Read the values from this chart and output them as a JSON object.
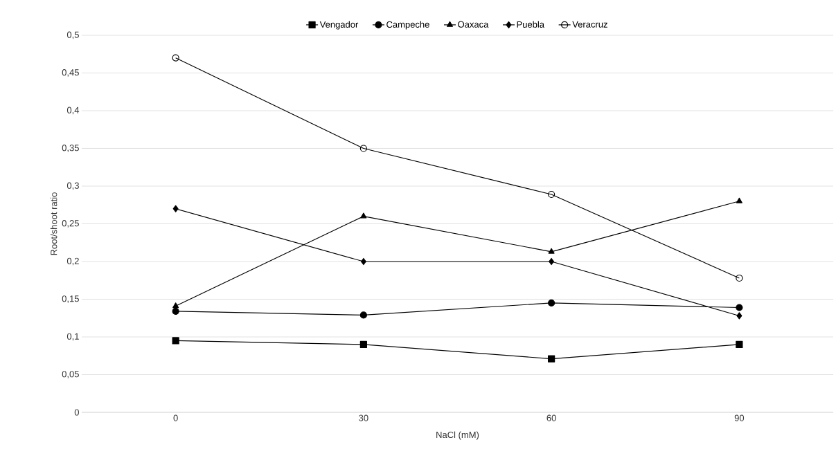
{
  "chart_data": {
    "type": "line",
    "xlabel": "NaCl (mM)",
    "ylabel": "Root/shoot ratio",
    "categories": [
      "0",
      "30",
      "60",
      "90"
    ],
    "series": [
      {
        "name": "Vengador",
        "color": "#000000",
        "marker": "square",
        "values": [
          0.095,
          0.09,
          0.071,
          0.09
        ]
      },
      {
        "name": "Campeche",
        "color": "#000000",
        "marker": "circle",
        "values": [
          0.134,
          0.129,
          0.145,
          0.139
        ]
      },
      {
        "name": "Oaxaca",
        "color": "#000000",
        "marker": "triangle",
        "values": [
          0.141,
          0.26,
          0.213,
          0.28
        ]
      },
      {
        "name": "Puebla",
        "color": "#000000",
        "marker": "diamond",
        "values": [
          0.27,
          0.2,
          0.2,
          0.128
        ]
      },
      {
        "name": "Veracruz",
        "color": "#000000",
        "marker": "open circle",
        "values": [
          0.47,
          0.35,
          0.289,
          0.178
        ]
      }
    ],
    "ylim": [
      0,
      0.5
    ],
    "yticks": [
      0,
      {
        "value": 0.05,
        "label": "0,05"
      },
      {
        "value": 0.1,
        "label": "0,1"
      },
      {
        "value": 0.15,
        "label": "0,15"
      },
      {
        "value": 0.2,
        "label": "0,2"
      },
      {
        "value": 0.25,
        "label": "0,25"
      },
      {
        "value": 0.3,
        "label": "0,3"
      },
      {
        "value": 0.35,
        "label": "0,35"
      },
      {
        "value": 0.4,
        "label": "0,4"
      },
      {
        "value": 0.45,
        "label": "0,45"
      },
      {
        "value": 0.5,
        "label": "0,5"
      }
    ],
    "grid": "y",
    "legend": "top",
    "line_style": "solid"
  }
}
